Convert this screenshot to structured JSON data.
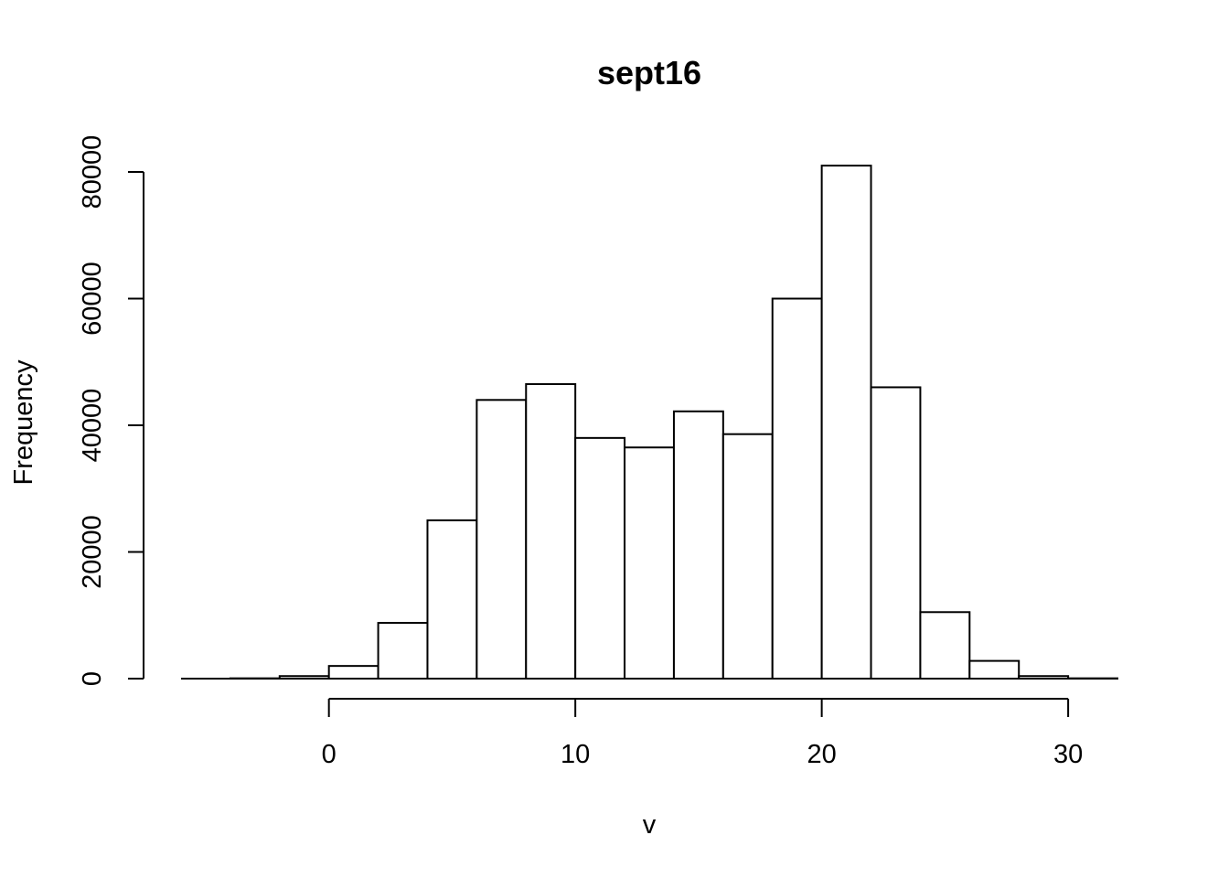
{
  "chart_data": {
    "type": "bar",
    "subtype": "histogram",
    "title": "sept16",
    "xlabel": "v",
    "ylabel": "Frequency",
    "bin_edges": [
      -6,
      -4,
      -2,
      0,
      2,
      4,
      6,
      8,
      10,
      12,
      14,
      16,
      18,
      20,
      22,
      24,
      26,
      28,
      30,
      32
    ],
    "values": [
      0,
      50,
      400,
      2000,
      8800,
      25000,
      44000,
      46500,
      38000,
      36500,
      42200,
      38600,
      60000,
      81000,
      46000,
      10500,
      2800,
      400,
      50
    ],
    "xlim": [
      -6,
      32
    ],
    "ylim": [
      0,
      81000
    ],
    "x_ticks": [
      0,
      10,
      20,
      30
    ],
    "x_tick_labels": [
      "0",
      "10",
      "20",
      "30"
    ],
    "y_ticks": [
      0,
      20000,
      40000,
      60000,
      80000
    ],
    "y_tick_labels": [
      "0",
      "20000",
      "40000",
      "60000",
      "80000"
    ],
    "bar_fill": "#ffffff",
    "bar_stroke": "#000000",
    "grid": false,
    "legend": "none"
  }
}
